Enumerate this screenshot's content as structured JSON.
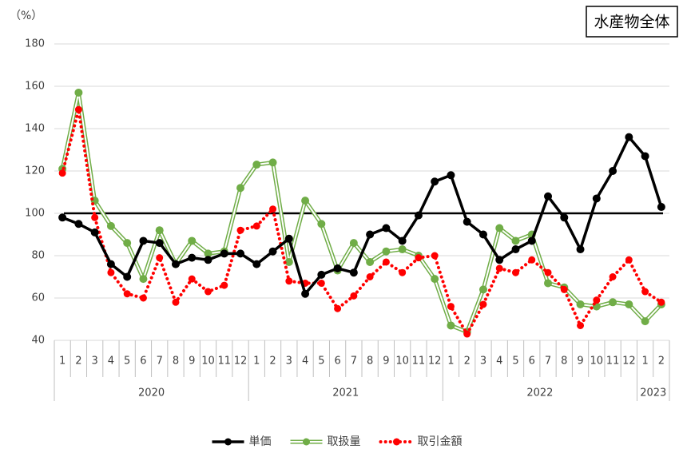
{
  "chart_data": {
    "type": "line",
    "title": "水産物全体",
    "y_unit": "（%）",
    "year_groups": [
      {
        "label": "2020",
        "months": [
          "1",
          "2",
          "3",
          "4",
          "5",
          "6",
          "7",
          "8",
          "9",
          "10",
          "11",
          "12"
        ]
      },
      {
        "label": "2021",
        "months": [
          "1",
          "2",
          "3",
          "4",
          "5",
          "6",
          "7",
          "8",
          "9",
          "10",
          "11",
          "12"
        ]
      },
      {
        "label": "2022",
        "months": [
          "1",
          "2",
          "3",
          "4",
          "5",
          "6",
          "7",
          "8",
          "9",
          "10",
          "11",
          "12"
        ]
      },
      {
        "label": "2023",
        "months": [
          "1",
          "2"
        ]
      }
    ],
    "ylim": [
      40,
      180
    ],
    "yticks": [
      40,
      60,
      80,
      100,
      120,
      140,
      160,
      180
    ],
    "grid": true,
    "reference_line": 100,
    "legend": "bottom",
    "series": [
      {
        "name": "単価",
        "color": "#000000",
        "style": "solid",
        "values": [
          98,
          95,
          91,
          76,
          70,
          87,
          86,
          76,
          79,
          78,
          81,
          81,
          76,
          82,
          88,
          62,
          71,
          74,
          72,
          90,
          93,
          87,
          99,
          115,
          118,
          96,
          90,
          78,
          83,
          87,
          108,
          98,
          83,
          107,
          120,
          136,
          127,
          103
        ]
      },
      {
        "name": "取扱量",
        "color": "#70ad47",
        "style": "double",
        "values": [
          121,
          157,
          106,
          94,
          86,
          69,
          92,
          76,
          87,
          81,
          82,
          112,
          123,
          124,
          77,
          106,
          95,
          73,
          86,
          77,
          82,
          83,
          80,
          69,
          47,
          44,
          64,
          93,
          87,
          90,
          67,
          65,
          57,
          56,
          58,
          57,
          49,
          57
        ]
      },
      {
        "name": "取引金額",
        "color": "#ff0000",
        "style": "dotted",
        "values": [
          119,
          149,
          98,
          72,
          62,
          60,
          79,
          58,
          69,
          63,
          66,
          92,
          94,
          102,
          68,
          67,
          67,
          55,
          61,
          70,
          77,
          72,
          79,
          80,
          56,
          43,
          57,
          74,
          72,
          78,
          72,
          64,
          47,
          59,
          70,
          78,
          63,
          58
        ]
      }
    ]
  }
}
